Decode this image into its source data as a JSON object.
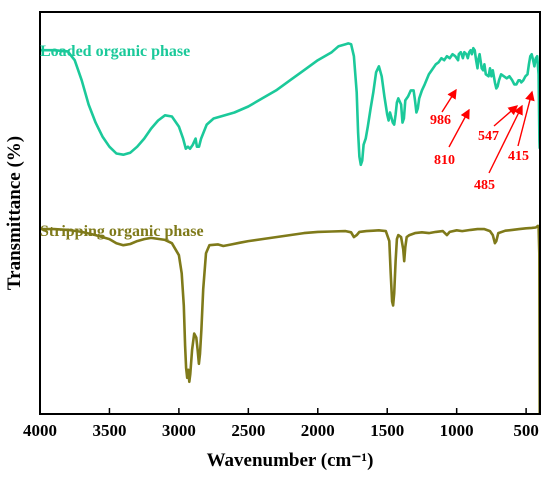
{
  "chart_data": {
    "type": "line",
    "title": "",
    "xlabel": "Wavenumber (cm⁻¹)",
    "ylabel": "Transmittance (%)",
    "xlim": [
      4000,
      400
    ],
    "x_reversed": true,
    "x_ticks": [
      4000,
      3500,
      3000,
      2500,
      2000,
      1500,
      1000,
      500
    ],
    "y_ticks_shown": false,
    "grid": false,
    "colors": {
      "loaded": "#1bc99a",
      "stripping": "#7f7a1a",
      "annotation": "#ff0000"
    },
    "series": [
      {
        "name": "Loaded organic phase",
        "key": "loaded",
        "points": [
          [
            4000,
            90.5
          ],
          [
            3900,
            90.5
          ],
          [
            3800,
            90.2
          ],
          [
            3750,
            88.0
          ],
          [
            3700,
            83.0
          ],
          [
            3650,
            77.0
          ],
          [
            3600,
            72.5
          ],
          [
            3550,
            69.0
          ],
          [
            3500,
            66.5
          ],
          [
            3450,
            64.8
          ],
          [
            3400,
            64.5
          ],
          [
            3350,
            65.0
          ],
          [
            3300,
            66.5
          ],
          [
            3250,
            68.5
          ],
          [
            3200,
            71.0
          ],
          [
            3150,
            73.0
          ],
          [
            3100,
            74.3
          ],
          [
            3050,
            74.0
          ],
          [
            3000,
            71.5
          ],
          [
            2970,
            68.5
          ],
          [
            2950,
            66.0
          ],
          [
            2935,
            66.5
          ],
          [
            2920,
            66.0
          ],
          [
            2900,
            67.0
          ],
          [
            2880,
            68.5
          ],
          [
            2870,
            66.5
          ],
          [
            2855,
            66.5
          ],
          [
            2840,
            68.5
          ],
          [
            2800,
            72.0
          ],
          [
            2750,
            73.5
          ],
          [
            2700,
            74.0
          ],
          [
            2600,
            75.0
          ],
          [
            2500,
            76.5
          ],
          [
            2400,
            78.5
          ],
          [
            2300,
            80.5
          ],
          [
            2200,
            83.0
          ],
          [
            2100,
            85.5
          ],
          [
            2000,
            88.0
          ],
          [
            1900,
            90.0
          ],
          [
            1850,
            91.5
          ],
          [
            1800,
            92.0
          ],
          [
            1780,
            92.2
          ],
          [
            1760,
            92.0
          ],
          [
            1740,
            89.0
          ],
          [
            1720,
            80.0
          ],
          [
            1710,
            70.0
          ],
          [
            1700,
            64.0
          ],
          [
            1690,
            62.0
          ],
          [
            1680,
            63.0
          ],
          [
            1670,
            67.0
          ],
          [
            1655,
            68.5
          ],
          [
            1640,
            71.5
          ],
          [
            1620,
            76.0
          ],
          [
            1600,
            80.0
          ],
          [
            1580,
            85.0
          ],
          [
            1560,
            86.5
          ],
          [
            1540,
            84.0
          ],
          [
            1520,
            79.0
          ],
          [
            1500,
            74.5
          ],
          [
            1490,
            73.0
          ],
          [
            1480,
            75.0
          ],
          [
            1460,
            72.5
          ],
          [
            1450,
            72.0
          ],
          [
            1440,
            74.5
          ],
          [
            1430,
            77.5
          ],
          [
            1420,
            78.5
          ],
          [
            1400,
            77.0
          ],
          [
            1390,
            72.5
          ],
          [
            1380,
            73.5
          ],
          [
            1370,
            78.0
          ],
          [
            1350,
            79.0
          ],
          [
            1330,
            80.5
          ],
          [
            1310,
            80.5
          ],
          [
            1300,
            78.0
          ],
          [
            1290,
            75.0
          ],
          [
            1280,
            76.0
          ],
          [
            1270,
            78.5
          ],
          [
            1250,
            80.5
          ],
          [
            1230,
            82.0
          ],
          [
            1200,
            84.5
          ],
          [
            1180,
            85.5
          ],
          [
            1150,
            87.0
          ],
          [
            1130,
            87.5
          ],
          [
            1110,
            88.5
          ],
          [
            1090,
            88.0
          ],
          [
            1070,
            89.0
          ],
          [
            1050,
            88.5
          ],
          [
            1030,
            89.5
          ],
          [
            1010,
            89.0
          ],
          [
            990,
            88.0
          ],
          [
            985,
            89.5
          ],
          [
            970,
            90.0
          ],
          [
            955,
            88.5
          ],
          [
            945,
            90.0
          ],
          [
            930,
            89.5
          ],
          [
            920,
            88.5
          ],
          [
            910,
            90.0
          ],
          [
            900,
            90.5
          ],
          [
            890,
            89.5
          ],
          [
            880,
            91.0
          ],
          [
            870,
            90.5
          ],
          [
            860,
            88.0
          ],
          [
            850,
            86.0
          ],
          [
            845,
            88.0
          ],
          [
            835,
            89.5
          ],
          [
            820,
            86.0
          ],
          [
            810,
            85.5
          ],
          [
            800,
            87.0
          ],
          [
            790,
            84.5
          ],
          [
            770,
            84.0
          ],
          [
            760,
            86.0
          ],
          [
            750,
            84.0
          ],
          [
            740,
            85.5
          ],
          [
            725,
            82.5
          ],
          [
            715,
            81.0
          ],
          [
            705,
            81.5
          ],
          [
            695,
            83.0
          ],
          [
            680,
            84.5
          ],
          [
            660,
            84.0
          ],
          [
            640,
            83.5
          ],
          [
            620,
            84.0
          ],
          [
            600,
            83.0
          ],
          [
            585,
            82.0
          ],
          [
            570,
            82.0
          ],
          [
            555,
            83.0
          ],
          [
            545,
            83.0
          ],
          [
            535,
            82.5
          ],
          [
            520,
            83.0
          ],
          [
            505,
            84.0
          ],
          [
            490,
            84.5
          ],
          [
            480,
            87.0
          ],
          [
            470,
            89.0
          ],
          [
            460,
            89.5
          ],
          [
            450,
            88.0
          ],
          [
            440,
            86.5
          ],
          [
            430,
            88.5
          ],
          [
            420,
            89.0
          ],
          [
            410,
            84.5
          ],
          [
            404,
            68.0
          ],
          [
            402,
            66.0
          ]
        ]
      },
      {
        "name": "Stripping organic phase",
        "key": "stripping",
        "points": [
          [
            4000,
            46.0
          ],
          [
            3900,
            46.0
          ],
          [
            3800,
            45.8
          ],
          [
            3700,
            45.3
          ],
          [
            3600,
            44.5
          ],
          [
            3500,
            43.5
          ],
          [
            3450,
            42.5
          ],
          [
            3400,
            42.0
          ],
          [
            3350,
            42.3
          ],
          [
            3300,
            43.0
          ],
          [
            3250,
            43.5
          ],
          [
            3200,
            43.8
          ],
          [
            3100,
            43.3
          ],
          [
            3050,
            42.5
          ],
          [
            3000,
            39.5
          ],
          [
            2980,
            35.0
          ],
          [
            2965,
            27.0
          ],
          [
            2955,
            17.0
          ],
          [
            2948,
            11.5
          ],
          [
            2940,
            9.0
          ],
          [
            2932,
            11.0
          ],
          [
            2925,
            8.0
          ],
          [
            2918,
            10.0
          ],
          [
            2905,
            16.0
          ],
          [
            2890,
            20.0
          ],
          [
            2875,
            19.0
          ],
          [
            2865,
            16.0
          ],
          [
            2856,
            12.5
          ],
          [
            2848,
            15.0
          ],
          [
            2838,
            21.0
          ],
          [
            2825,
            31.0
          ],
          [
            2805,
            40.0
          ],
          [
            2780,
            42.0
          ],
          [
            2720,
            42.2
          ],
          [
            2680,
            41.8
          ],
          [
            2620,
            42.2
          ],
          [
            2560,
            42.6
          ],
          [
            2500,
            43.0
          ],
          [
            2400,
            43.5
          ],
          [
            2300,
            44.0
          ],
          [
            2200,
            44.5
          ],
          [
            2100,
            45.0
          ],
          [
            2000,
            45.3
          ],
          [
            1900,
            45.4
          ],
          [
            1800,
            45.5
          ],
          [
            1760,
            45.2
          ],
          [
            1740,
            44.0
          ],
          [
            1720,
            44.5
          ],
          [
            1700,
            45.3
          ],
          [
            1650,
            45.5
          ],
          [
            1600,
            45.6
          ],
          [
            1560,
            45.7
          ],
          [
            1510,
            45.5
          ],
          [
            1485,
            43.0
          ],
          [
            1475,
            35.0
          ],
          [
            1465,
            28.0
          ],
          [
            1458,
            27.0
          ],
          [
            1450,
            30.0
          ],
          [
            1440,
            38.0
          ],
          [
            1430,
            43.5
          ],
          [
            1420,
            44.5
          ],
          [
            1400,
            44.0
          ],
          [
            1385,
            41.0
          ],
          [
            1378,
            38.0
          ],
          [
            1370,
            41.5
          ],
          [
            1360,
            44.0
          ],
          [
            1340,
            44.5
          ],
          [
            1300,
            45.0
          ],
          [
            1250,
            45.2
          ],
          [
            1200,
            45.0
          ],
          [
            1150,
            45.3
          ],
          [
            1100,
            45.5
          ],
          [
            1070,
            44.5
          ],
          [
            1050,
            45.3
          ],
          [
            1000,
            45.7
          ],
          [
            960,
            45.5
          ],
          [
            900,
            45.8
          ],
          [
            850,
            46.0
          ],
          [
            800,
            46.0
          ],
          [
            760,
            45.5
          ],
          [
            740,
            44.5
          ],
          [
            725,
            42.5
          ],
          [
            715,
            43.0
          ],
          [
            700,
            45.0
          ],
          [
            650,
            45.6
          ],
          [
            600,
            45.8
          ],
          [
            550,
            46.0
          ],
          [
            500,
            46.2
          ],
          [
            460,
            46.3
          ],
          [
            430,
            46.4
          ],
          [
            415,
            46.8
          ],
          [
            410,
            46.5
          ],
          [
            405,
            40.0
          ],
          [
            402,
            0.0
          ]
        ]
      }
    ],
    "annotations": [
      {
        "label": "986",
        "wavenumber": 986
      },
      {
        "label": "810",
        "wavenumber": 810
      },
      {
        "label": "547",
        "wavenumber": 547
      },
      {
        "label": "485",
        "wavenumber": 485
      },
      {
        "label": "415",
        "wavenumber": 415
      }
    ]
  }
}
